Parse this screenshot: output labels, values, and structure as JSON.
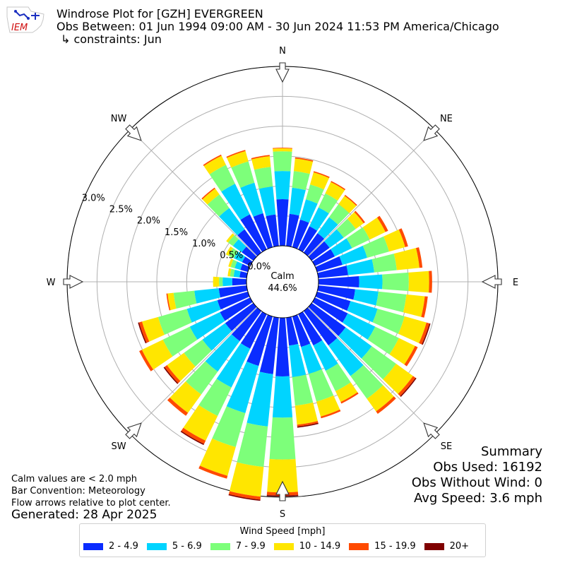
{
  "header": {
    "logo_text": "IEM",
    "title": "Windrose Plot for [GZH] EVERGREEN",
    "subtitle": "Obs Between: 01 Jun 1994 09:00 AM - 30 Jun 2024 11:53 PM America/Chicago",
    "constraints": "↳ constraints: Jun"
  },
  "summary": {
    "heading": "Summary",
    "obs_used": "Obs Used: 16192",
    "obs_without_wind": "Obs Without Wind: 0",
    "avg_speed": "Avg Speed: 3.6 mph"
  },
  "notes": {
    "calm": "Calm values are < 2.0 mph",
    "bar_convention": "Bar Convention: Meteorology",
    "flow_arrows": "Flow arrows relative to plot center.",
    "generated": "Generated: 28 Apr 2025"
  },
  "chart_data": {
    "type": "windrose",
    "calm_label": "Calm",
    "calm_value": "44.6%",
    "radial_max": 3.0,
    "radial_ticks": [
      "0.0%",
      "0.5%",
      "1.0%",
      "1.5%",
      "2.0%",
      "2.5%",
      "3.0%"
    ],
    "compass_labels": [
      "N",
      "NE",
      "E",
      "SE",
      "S",
      "SW",
      "W",
      "NW"
    ],
    "legend_title": "Wind Speed [mph]",
    "bins": [
      {
        "label": "2 - 4.9",
        "color": "#0a2cff"
      },
      {
        "label": "5 - 6.9",
        "color": "#00d4ff"
      },
      {
        "label": "7 - 9.9",
        "color": "#7dff7a"
      },
      {
        "label": "10 - 14.9",
        "color": "#ffe600"
      },
      {
        "label": "15 - 19.9",
        "color": "#ff4a00"
      },
      {
        "label": "20+",
        "color": "#7f0000"
      }
    ],
    "sectors": [
      {
        "dir": 0,
        "values": [
          0.78,
          0.47,
          0.33,
          0.05,
          0.01,
          0.0
        ]
      },
      {
        "dir": 10,
        "values": [
          0.54,
          0.44,
          0.28,
          0.21,
          0.02,
          0.0
        ]
      },
      {
        "dir": 20,
        "values": [
          0.48,
          0.35,
          0.26,
          0.21,
          0.02,
          0.0
        ]
      },
      {
        "dir": 30,
        "values": [
          0.43,
          0.35,
          0.26,
          0.21,
          0.02,
          0.0
        ]
      },
      {
        "dir": 40,
        "values": [
          0.4,
          0.33,
          0.27,
          0.17,
          0.02,
          0.0
        ]
      },
      {
        "dir": 50,
        "values": [
          0.37,
          0.29,
          0.25,
          0.16,
          0.03,
          0.0
        ]
      },
      {
        "dir": 60,
        "values": [
          0.37,
          0.32,
          0.33,
          0.29,
          0.05,
          0.0
        ]
      },
      {
        "dir": 70,
        "values": [
          0.44,
          0.43,
          0.38,
          0.28,
          0.05,
          0.0
        ]
      },
      {
        "dir": 80,
        "values": [
          0.5,
          0.44,
          0.38,
          0.38,
          0.05,
          0.0
        ]
      },
      {
        "dir": 90,
        "values": [
          0.68,
          0.39,
          0.44,
          0.34,
          0.05,
          0.0
        ]
      },
      {
        "dir": 100,
        "values": [
          0.62,
          0.39,
          0.47,
          0.31,
          0.05,
          0.0
        ]
      },
      {
        "dir": 110,
        "values": [
          0.58,
          0.47,
          0.47,
          0.38,
          0.05,
          0.02
        ]
      },
      {
        "dir": 120,
        "values": [
          0.61,
          0.51,
          0.44,
          0.3,
          0.05,
          0.0
        ]
      },
      {
        "dir": 130,
        "values": [
          0.7,
          0.54,
          0.5,
          0.35,
          0.05,
          0.02
        ]
      },
      {
        "dir": 140,
        "values": [
          0.71,
          0.63,
          0.47,
          0.26,
          0.05,
          0.0
        ]
      },
      {
        "dir": 150,
        "values": [
          0.58,
          0.47,
          0.38,
          0.2,
          0.03,
          0.0
        ]
      },
      {
        "dir": 160,
        "values": [
          0.53,
          0.47,
          0.48,
          0.26,
          0.03,
          0.0
        ]
      },
      {
        "dir": 170,
        "values": [
          0.47,
          0.53,
          0.48,
          0.32,
          0.03,
          0.02
        ]
      },
      {
        "dir": 180,
        "values": [
          0.98,
          0.69,
          0.7,
          0.55,
          0.05,
          0.02
        ]
      },
      {
        "dir": 190,
        "values": [
          0.95,
          0.88,
          0.68,
          0.5,
          0.05,
          0.02
        ]
      },
      {
        "dir": 200,
        "values": [
          0.86,
          0.82,
          0.59,
          0.5,
          0.05,
          0.0
        ]
      },
      {
        "dir": 210,
        "values": [
          0.64,
          0.72,
          0.53,
          0.46,
          0.06,
          0.02
        ]
      },
      {
        "dir": 220,
        "values": [
          0.62,
          0.63,
          0.47,
          0.38,
          0.06,
          0.0
        ]
      },
      {
        "dir": 230,
        "values": [
          0.58,
          0.47,
          0.38,
          0.35,
          0.05,
          0.02
        ]
      },
      {
        "dir": 240,
        "values": [
          0.56,
          0.56,
          0.5,
          0.39,
          0.05,
          0.0
        ]
      },
      {
        "dir": 250,
        "values": [
          0.53,
          0.53,
          0.5,
          0.28,
          0.05,
          0.02
        ]
      },
      {
        "dir": 260,
        "values": [
          0.47,
          0.41,
          0.35,
          0.1,
          0.02,
          0.0
        ]
      },
      {
        "dir": 270,
        "values": [
          0.24,
          0.16,
          0.06,
          0.1,
          0.0,
          0.0
        ]
      },
      {
        "dir": 280,
        "values": [
          0.12,
          0.1,
          0.06,
          0.04,
          0.0,
          0.0
        ]
      },
      {
        "dir": 290,
        "values": [
          0.13,
          0.1,
          0.07,
          0.04,
          0.0,
          0.0
        ]
      },
      {
        "dir": 300,
        "values": [
          0.15,
          0.15,
          0.1,
          0.05,
          0.0,
          0.0
        ]
      },
      {
        "dir": 310,
        "values": [
          0.24,
          0.18,
          0.1,
          0.04,
          0.0,
          0.0
        ]
      },
      {
        "dir": 320,
        "values": [
          0.48,
          0.44,
          0.28,
          0.12,
          0.02,
          0.0
        ]
      },
      {
        "dir": 330,
        "values": [
          0.65,
          0.57,
          0.35,
          0.17,
          0.02,
          0.0
        ]
      },
      {
        "dir": 340,
        "values": [
          0.59,
          0.53,
          0.37,
          0.18,
          0.02,
          0.0
        ]
      },
      {
        "dir": 350,
        "values": [
          0.53,
          0.47,
          0.33,
          0.18,
          0.02,
          0.0
        ]
      }
    ]
  }
}
